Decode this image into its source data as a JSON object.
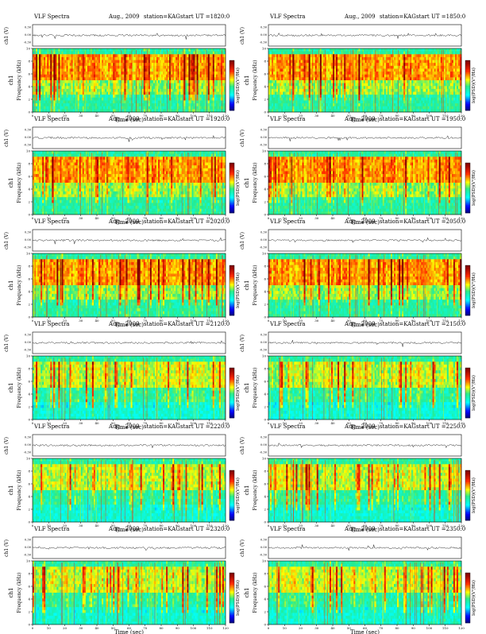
{
  "page": {
    "header_left": "VLF Spectra",
    "date": "Aug., 2009",
    "station": "station=KAG",
    "start_prefix": "start  UT  =",
    "amp_label": "ch1 (V)",
    "ch_label": "ch1",
    "freq_label": "Frequency  (kHz)",
    "time_label": "Time  (sec)",
    "cbar_label": "log(PSD)(V²/Hz)",
    "amp_ticks": [
      "0.30",
      "0.00",
      "-0.30"
    ],
    "freq_ticks": [
      "0",
      "2",
      "4",
      "6",
      "8",
      "10"
    ],
    "time_ticks": [
      "0",
      "10",
      "20",
      "30",
      "40",
      "50",
      "60",
      "70",
      "80",
      "90",
      "100",
      "110",
      "120"
    ]
  },
  "colors": {
    "colormap": [
      "#00008f",
      "#0000ff",
      "#00ffff",
      "#00ff80",
      "#ffff00",
      "#ff0000",
      "#800000"
    ],
    "background_band": "#3ce6c8"
  },
  "chart_data": [
    {
      "type": "heatmap",
      "start_ut": "1820:0",
      "xlabel": "Time  (sec)",
      "ylabel": "Frequency  (kHz)",
      "xlim": [
        0,
        120
      ],
      "ylim": [
        0,
        10
      ],
      "intensity": "strong"
    },
    {
      "type": "heatmap",
      "start_ut": "1850:0",
      "xlabel": "Time  (sec)",
      "ylabel": "Frequency  (kHz)",
      "xlim": [
        0,
        120
      ],
      "ylim": [
        0,
        10
      ],
      "intensity": "strong"
    },
    {
      "type": "heatmap",
      "start_ut": "1920:0",
      "xlabel": "Time  (sec)",
      "ylabel": "Frequency  (kHz)",
      "xlim": [
        0,
        120
      ],
      "ylim": [
        0,
        10
      ],
      "intensity": "strong"
    },
    {
      "type": "heatmap",
      "start_ut": "1950:0",
      "xlabel": "Time  (sec)",
      "ylabel": "Frequency  (kHz)",
      "xlim": [
        0,
        120
      ],
      "ylim": [
        0,
        10
      ],
      "intensity": "strong"
    },
    {
      "type": "heatmap",
      "start_ut": "2020:0",
      "xlabel": "Time  (sec)",
      "ylabel": "Frequency  (kHz)",
      "xlim": [
        0,
        120
      ],
      "ylim": [
        0,
        10
      ],
      "intensity": "strong"
    },
    {
      "type": "heatmap",
      "start_ut": "2050:0",
      "xlabel": "Time  (sec)",
      "ylabel": "Frequency  (kHz)",
      "xlim": [
        0,
        120
      ],
      "ylim": [
        0,
        10
      ],
      "intensity": "strong"
    },
    {
      "type": "heatmap",
      "start_ut": "2120:0",
      "xlabel": "Time  (sec)",
      "ylabel": "Frequency  (kHz)",
      "xlim": [
        0,
        120
      ],
      "ylim": [
        0,
        10
      ],
      "intensity": "medium"
    },
    {
      "type": "heatmap",
      "start_ut": "2150:0",
      "xlabel": "Time  (sec)",
      "ylabel": "Frequency  (kHz)",
      "xlim": [
        0,
        120
      ],
      "ylim": [
        0,
        10
      ],
      "intensity": "medium"
    },
    {
      "type": "heatmap",
      "start_ut": "2220:0",
      "xlabel": "Time  (sec)",
      "ylabel": "Frequency  (kHz)",
      "xlim": [
        0,
        120
      ],
      "ylim": [
        0,
        10
      ],
      "intensity": "medium"
    },
    {
      "type": "heatmap",
      "start_ut": "2250:0",
      "xlabel": "Time  (sec)",
      "ylabel": "Frequency  (kHz)",
      "xlim": [
        0,
        120
      ],
      "ylim": [
        0,
        10
      ],
      "intensity": "medium"
    },
    {
      "type": "heatmap",
      "start_ut": "2320:0",
      "xlabel": "Time  (sec)",
      "ylabel": "Frequency  (kHz)",
      "xlim": [
        0,
        120
      ],
      "ylim": [
        0,
        10
      ],
      "intensity": "medium"
    },
    {
      "type": "heatmap",
      "start_ut": "2350:0",
      "xlabel": "Time  (sec)",
      "ylabel": "Frequency  (kHz)",
      "xlim": [
        0,
        120
      ],
      "ylim": [
        0,
        10
      ],
      "intensity": "medium"
    }
  ]
}
